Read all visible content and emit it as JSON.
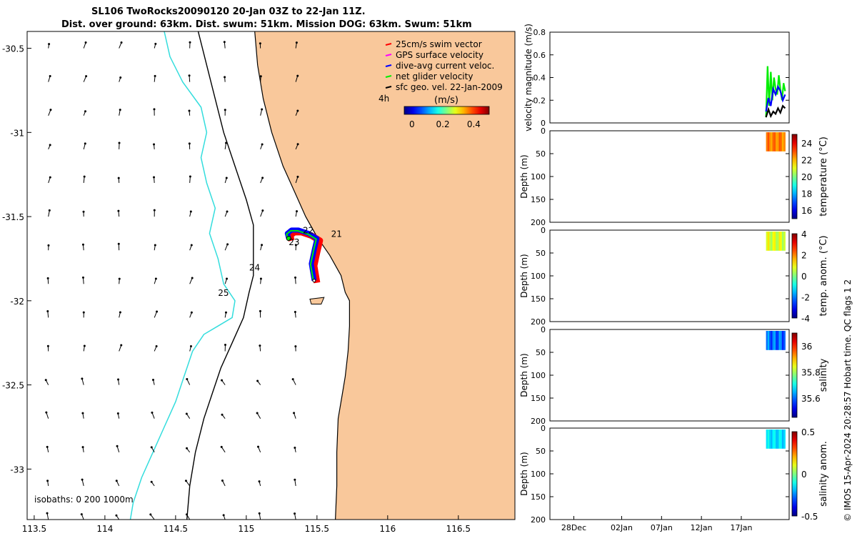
{
  "header": {
    "title_line1": "SL106 TwoRocks20090120 20-Jan 03Z to 22-Jan 11Z.",
    "title_line2": "Dist. over ground: 63km. Dist. swum: 51km. Mission DOG: 63km. Swum: 51km"
  },
  "credit": "© IMOS 15-Apr-2024 20:28:57 Hobart time. QC flags 1  2",
  "colors": {
    "land": "#f9c89b",
    "coastline": "#000000",
    "isobath_200": "#000000",
    "isobath_1000": "#33dddd",
    "swim_vector": "#ff0000",
    "gps_velocity": "#ff00ff",
    "dive_avg": "#0000ff",
    "net_glider": "#00ee00",
    "sfc_geo": "#000000"
  },
  "chart_data": [
    {
      "type": "map",
      "xlim": [
        113.45,
        116.9
      ],
      "ylim": [
        -33.3,
        -30.4
      ],
      "xticks": [
        113.5,
        114,
        114.5,
        115,
        115.5,
        116,
        116.5
      ],
      "xtick_labels": [
        "113.5",
        "114",
        "114.5",
        "115",
        "115.5",
        "116",
        "116.5"
      ],
      "yticks": [
        -30.5,
        -31,
        -31.5,
        -32,
        -32.5,
        -33
      ],
      "ytick_labels": [
        "-30.5",
        "-31",
        "-31.5",
        "-32",
        "-32.5",
        "-33"
      ],
      "legend": {
        "placement": "top-right",
        "items": [
          {
            "label": "25cm/s swim vector",
            "color": "#ff0000"
          },
          {
            "label": "GPS surface velocity",
            "color": "#ff00ff"
          },
          {
            "label": "dive-avg current veloc.",
            "color": "#0000ff"
          },
          {
            "label": "net glider velocity",
            "color": "#00ee00"
          },
          {
            "label": "sfc geo. vel. 22-Jan-2009",
            "color": "#000000"
          }
        ]
      },
      "colorbar": {
        "label": "(m/s)",
        "extra_label": "4h",
        "range": [
          -0.05,
          0.5
        ],
        "ticks": [
          0,
          0.2,
          0.4
        ],
        "tick_labels": [
          "0",
          "0.2",
          "0.4"
        ]
      },
      "isobath_label": "isobaths: 0   200  1000m",
      "day_labels": [
        {
          "text": "21",
          "lon": 115.6,
          "lat": -31.62
        },
        {
          "text": "22",
          "lon": 115.4,
          "lat": -31.6
        },
        {
          "text": "23",
          "lon": 115.3,
          "lat": -31.67
        },
        {
          "text": "24",
          "lon": 115.02,
          "lat": -31.82
        },
        {
          "text": "25",
          "lon": 114.8,
          "lat": -31.97
        }
      ],
      "coastline": [
        [
          115.06,
          -30.4
        ],
        [
          115.08,
          -30.6
        ],
        [
          115.12,
          -30.8
        ],
        [
          115.18,
          -31.0
        ],
        [
          115.26,
          -31.2
        ],
        [
          115.34,
          -31.35
        ],
        [
          115.42,
          -31.5
        ],
        [
          115.5,
          -31.62
        ],
        [
          115.59,
          -31.73
        ],
        [
          115.67,
          -31.85
        ],
        [
          115.7,
          -31.95
        ],
        [
          115.73,
          -32.0
        ],
        [
          115.73,
          -32.15
        ],
        [
          115.72,
          -32.3
        ],
        [
          115.7,
          -32.45
        ],
        [
          115.68,
          -32.55
        ],
        [
          115.65,
          -32.7
        ],
        [
          115.64,
          -32.9
        ],
        [
          115.64,
          -33.1
        ],
        [
          115.63,
          -33.3
        ]
      ],
      "isobath_200": [
        [
          114.66,
          -30.4
        ],
        [
          114.72,
          -30.6
        ],
        [
          114.78,
          -30.8
        ],
        [
          114.84,
          -31.0
        ],
        [
          114.92,
          -31.2
        ],
        [
          115.0,
          -31.4
        ],
        [
          115.05,
          -31.55
        ],
        [
          115.05,
          -31.7
        ],
        [
          115.05,
          -31.85
        ],
        [
          115.02,
          -31.95
        ],
        [
          114.98,
          -32.1
        ],
        [
          114.9,
          -32.25
        ],
        [
          114.82,
          -32.4
        ],
        [
          114.76,
          -32.55
        ],
        [
          114.7,
          -32.7
        ],
        [
          114.64,
          -32.9
        ],
        [
          114.6,
          -33.1
        ],
        [
          114.58,
          -33.3
        ]
      ],
      "isobath_1000": [
        [
          114.42,
          -30.4
        ],
        [
          114.46,
          -30.55
        ],
        [
          114.55,
          -30.7
        ],
        [
          114.68,
          -30.85
        ],
        [
          114.72,
          -31.0
        ],
        [
          114.68,
          -31.15
        ],
        [
          114.72,
          -31.3
        ],
        [
          114.78,
          -31.45
        ],
        [
          114.74,
          -31.6
        ],
        [
          114.8,
          -31.75
        ],
        [
          114.84,
          -31.9
        ],
        [
          114.92,
          -32.0
        ],
        [
          114.9,
          -32.1
        ],
        [
          114.8,
          -32.15
        ],
        [
          114.7,
          -32.2
        ],
        [
          114.62,
          -32.3
        ],
        [
          114.56,
          -32.45
        ],
        [
          114.5,
          -32.6
        ],
        [
          114.42,
          -32.75
        ],
        [
          114.34,
          -32.9
        ],
        [
          114.26,
          -33.05
        ],
        [
          114.2,
          -33.2
        ],
        [
          114.18,
          -33.3
        ]
      ],
      "glider_track": [
        [
          115.48,
          -31.88
        ],
        [
          115.46,
          -31.78
        ],
        [
          115.48,
          -31.7
        ],
        [
          115.5,
          -31.63
        ],
        [
          115.44,
          -31.6
        ],
        [
          115.37,
          -31.58
        ],
        [
          115.32,
          -31.58
        ],
        [
          115.29,
          -31.6
        ],
        [
          115.3,
          -31.63
        ]
      ],
      "current_grid": {
        "lons": [
          113.6,
          113.85,
          114.1,
          114.35,
          114.6,
          114.85,
          115.1,
          115.35
        ],
        "lats": [
          -30.5,
          -30.7,
          -30.9,
          -31.1,
          -31.3,
          -31.5,
          -31.7,
          -31.9,
          -32.1,
          -32.3,
          -32.5,
          -32.7,
          -32.9,
          -33.1,
          -33.3
        ],
        "speed_range_m_s": [
          0.0,
          0.25
        ]
      }
    },
    {
      "type": "line",
      "ylabel": "velocity magnitude (m/s)",
      "ylim": [
        0,
        0.8
      ],
      "yticks": [
        0,
        0.2,
        0.4,
        0.6,
        0.8
      ],
      "ytick_labels": [
        "0",
        "0.2",
        "0.4",
        "0.6",
        "0.8"
      ],
      "series": [
        {
          "color": "#00ee00",
          "x": [
            20.1,
            20.3,
            20.5,
            20.7,
            20.9,
            21.1,
            21.3,
            21.5,
            21.7,
            21.9,
            22.1,
            22.3,
            22.5
          ],
          "values": [
            0.05,
            0.5,
            0.15,
            0.45,
            0.2,
            0.4,
            0.3,
            0.25,
            0.42,
            0.3,
            0.2,
            0.35,
            0.28
          ]
        },
        {
          "color": "#0000ff",
          "x": [
            20.1,
            20.4,
            20.7,
            21.0,
            21.3,
            21.6,
            21.9,
            22.2,
            22.5
          ],
          "values": [
            0.1,
            0.22,
            0.15,
            0.3,
            0.25,
            0.32,
            0.28,
            0.2,
            0.25
          ]
        },
        {
          "color": "#000000",
          "x": [
            20.1,
            20.4,
            20.7,
            21.0,
            21.3,
            21.6,
            21.9,
            22.2,
            22.5
          ],
          "values": [
            0.05,
            0.12,
            0.06,
            0.1,
            0.08,
            0.13,
            0.09,
            0.15,
            0.13
          ]
        }
      ]
    },
    {
      "type": "scatter",
      "ylabel": "Depth (m)",
      "ylim": [
        200,
        0
      ],
      "yticks": [
        0,
        50,
        100,
        150,
        200
      ],
      "ytick_labels": [
        "0",
        "50",
        "100",
        "150",
        "200"
      ],
      "data_x_range_days": [
        20.1,
        22.5
      ],
      "data_depth_range_m": [
        0,
        45
      ],
      "value_range": [
        22,
        23
      ],
      "colorbar": {
        "label": "temperature (°C)",
        "range": [
          15,
          25
        ],
        "ticks": [
          16,
          18,
          20,
          22,
          24
        ],
        "tick_labels": [
          "16",
          "18",
          "20",
          "22",
          "24"
        ]
      }
    },
    {
      "type": "scatter",
      "ylabel": "Depth (m)",
      "ylim": [
        200,
        0
      ],
      "yticks": [
        0,
        50,
        100,
        150,
        200
      ],
      "ytick_labels": [
        "0",
        "50",
        "100",
        "150",
        "200"
      ],
      "data_x_range_days": [
        20.1,
        22.5
      ],
      "data_depth_range_m": [
        0,
        45
      ],
      "value_range": [
        0.2,
        1.2
      ],
      "colorbar": {
        "label": "temp. anom. (°C)",
        "range": [
          -4,
          4
        ],
        "ticks": [
          -4,
          -2,
          0,
          2,
          4
        ],
        "tick_labels": [
          "-4",
          "-2",
          "0",
          "2",
          "4"
        ]
      }
    },
    {
      "type": "scatter",
      "ylabel": "Depth (m)",
      "ylim": [
        200,
        0
      ],
      "yticks": [
        0,
        50,
        100,
        150,
        200
      ],
      "ytick_labels": [
        "0",
        "50",
        "100",
        "150",
        "200"
      ],
      "data_x_range_days": [
        20.1,
        22.5
      ],
      "data_depth_range_m": [
        0,
        45
      ],
      "value_range": [
        35.55,
        35.65
      ],
      "colorbar": {
        "label": "salinity",
        "range": [
          35.45,
          36.1
        ],
        "ticks": [
          35.6,
          35.8,
          36
        ],
        "tick_labels": [
          "35.6",
          "35.8",
          "36"
        ]
      }
    },
    {
      "type": "scatter",
      "ylabel": "Depth (m)",
      "ylim": [
        200,
        0
      ],
      "yticks": [
        0,
        50,
        100,
        150,
        200
      ],
      "ytick_labels": [
        "0",
        "50",
        "100",
        "150",
        "200"
      ],
      "data_x_range_days": [
        20.1,
        22.5
      ],
      "data_depth_range_m": [
        0,
        45
      ],
      "value_range": [
        -0.2,
        -0.1
      ],
      "colorbar": {
        "label": "salinity anom.",
        "range": [
          -0.5,
          0.5
        ],
        "ticks": [
          -0.5,
          0,
          0.5
        ],
        "tick_labels": [
          "-0.5",
          "0",
          "0.5"
        ]
      },
      "xticks_days": [
        -4,
        2,
        7,
        12,
        17
      ],
      "xtick_labels": [
        "28Dec",
        "02Jan",
        "07Jan",
        "12Jan",
        "17Jan"
      ]
    }
  ]
}
